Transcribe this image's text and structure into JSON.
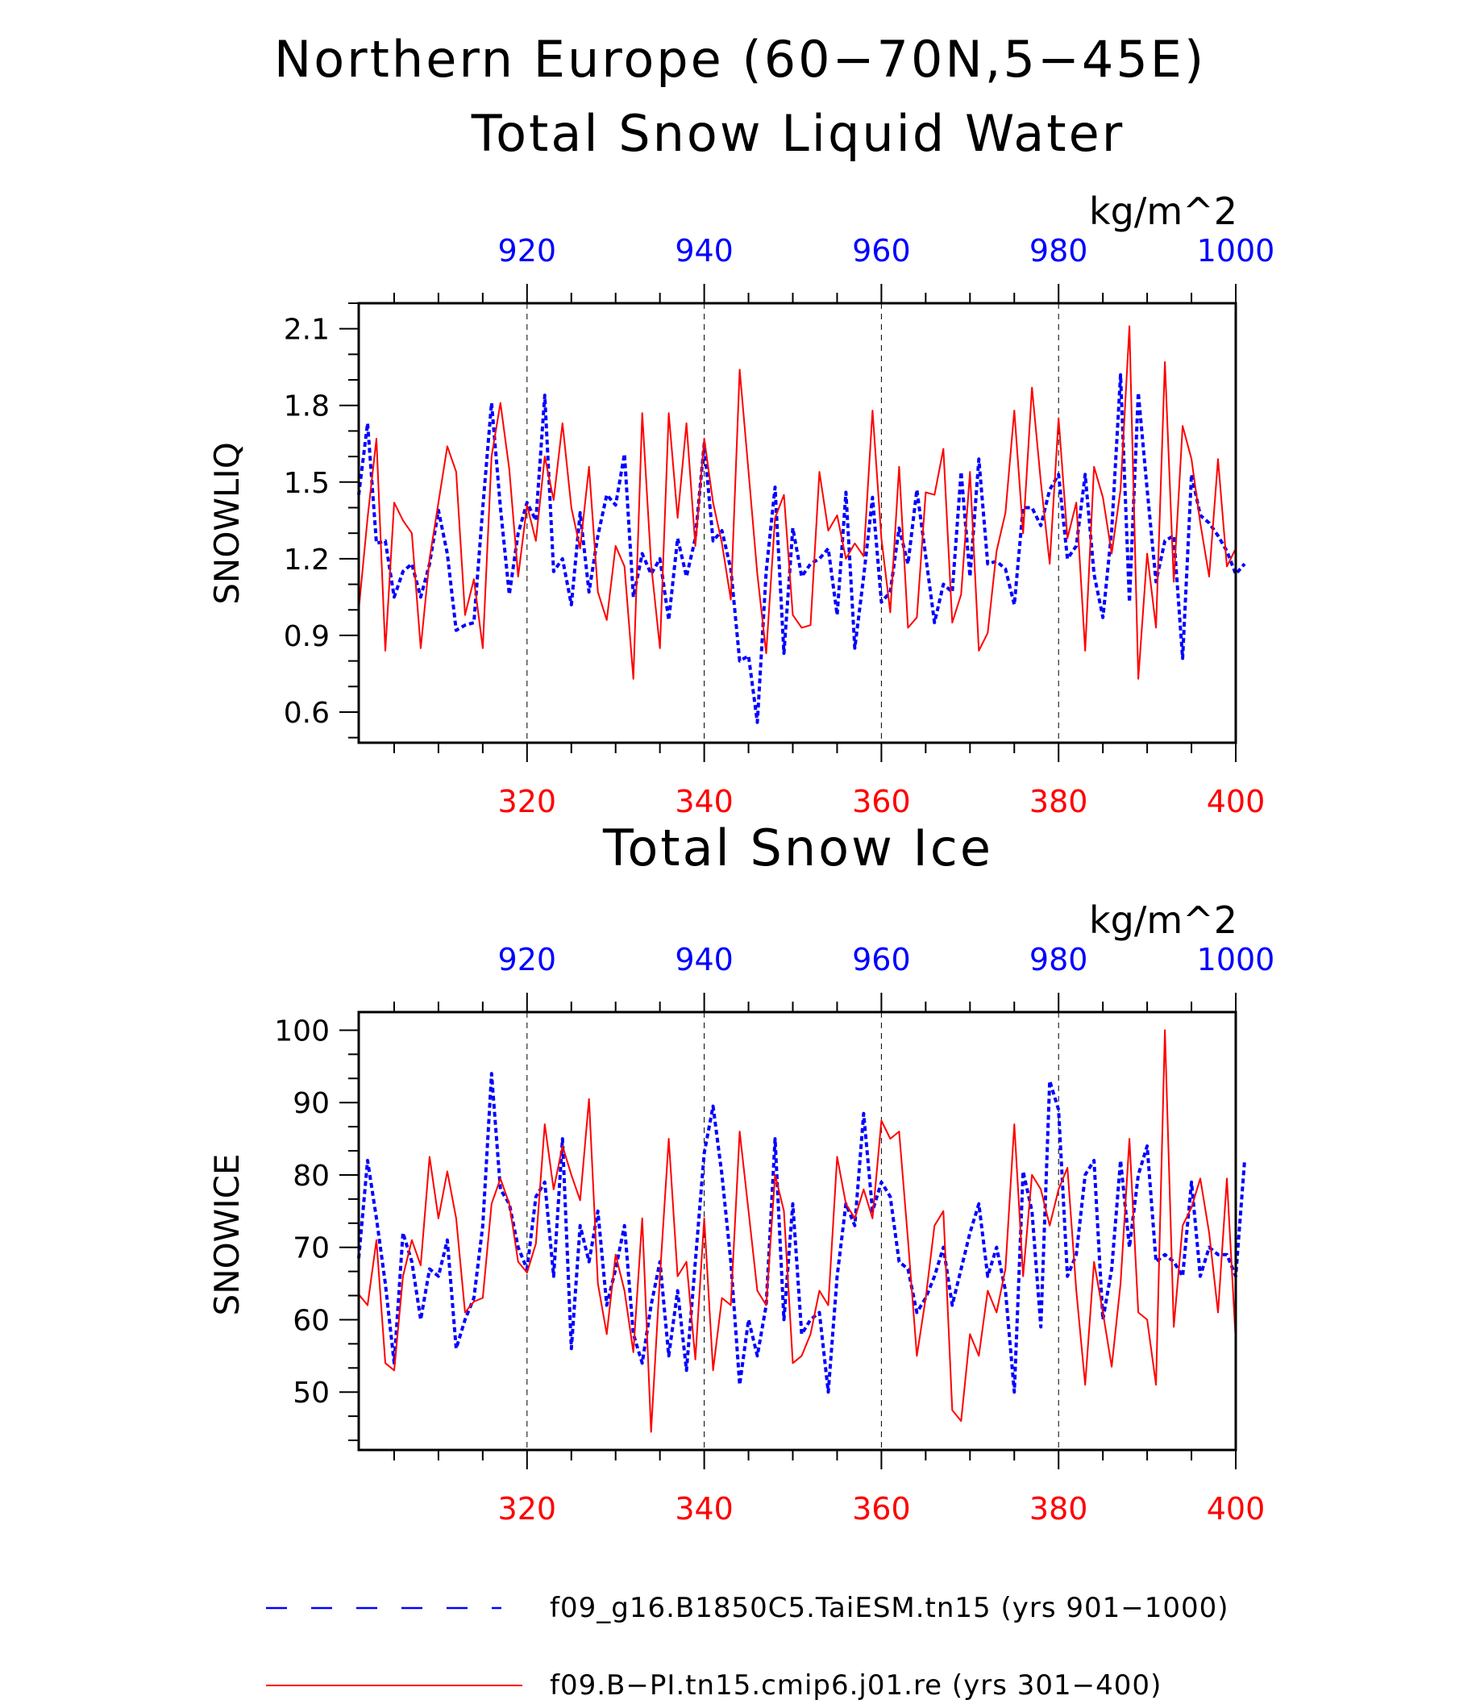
{
  "page": {
    "title_line1": "Northern Europe (60−70N,5−45E)",
    "legend": [
      {
        "label": "f09_g16.B1850C5.TaiESM.tn15 (yrs 901−1000)",
        "color": "#0000ff",
        "style": "dashed"
      },
      {
        "label": "f09.B−PI.tn15.cmip6.j01.re (yrs 301−400)",
        "color": "#ff0000",
        "style": "solid"
      }
    ]
  },
  "chart_data": [
    {
      "type": "line",
      "title": "Total Snow Liquid Water",
      "units": "kg/m^2",
      "ylabel": "SNOWLIQ",
      "ylim": [
        0.48,
        2.2
      ],
      "yticks": [
        0.6,
        0.9,
        1.2,
        1.5,
        1.8,
        2.1
      ],
      "ytick_labels": [
        "0.6",
        "0.9",
        "1.2",
        "1.5",
        "1.8",
        "2.1"
      ],
      "x_bottom": {
        "range": [
          301,
          400
        ],
        "ticks": [
          320,
          340,
          360,
          380,
          400
        ],
        "color": "#ff0000"
      },
      "x_top": {
        "range": [
          901,
          1000
        ],
        "ticks": [
          920,
          940,
          960,
          980,
          1000
        ],
        "color": "#0000ff"
      },
      "grid": "vertical dashed at major x ticks",
      "series": [
        {
          "axis": "top",
          "color": "#0000ff",
          "style": "dashed",
          "values": [
            1.45,
            1.73,
            1.26,
            1.27,
            1.05,
            1.15,
            1.18,
            1.05,
            1.18,
            1.39,
            1.22,
            0.92,
            0.94,
            0.95,
            1.4,
            1.81,
            1.4,
            1.06,
            1.3,
            1.42,
            1.35,
            1.84,
            1.15,
            1.2,
            1.02,
            1.38,
            1.07,
            1.29,
            1.45,
            1.41,
            1.61,
            1.05,
            1.22,
            1.14,
            1.2,
            0.96,
            1.28,
            1.13,
            1.28,
            1.65,
            1.27,
            1.31,
            1.16,
            0.8,
            0.82,
            0.56,
            1.15,
            1.48,
            0.83,
            1.32,
            1.13,
            1.18,
            1.2,
            1.24,
            0.98,
            1.46,
            0.85,
            1.13,
            1.44,
            1.03,
            1.07,
            1.32,
            1.18,
            1.47,
            1.21,
            0.95,
            1.1,
            1.07,
            1.54,
            1.13,
            1.59,
            1.18,
            1.19,
            1.16,
            1.02,
            1.4,
            1.4,
            1.33,
            1.47,
            1.53,
            1.2,
            1.25,
            1.53,
            1.14,
            0.97,
            1.31,
            1.92,
            1.03,
            1.85,
            1.47,
            1.11,
            1.27,
            1.29,
            0.81,
            1.53,
            1.37,
            1.34,
            1.29,
            1.23,
            1.14,
            1.18
          ]
        },
        {
          "axis": "bottom",
          "color": "#ff0000",
          "style": "solid",
          "values": [
            1.0,
            1.36,
            1.67,
            0.84,
            1.42,
            1.35,
            1.3,
            0.85,
            1.2,
            1.42,
            1.64,
            1.54,
            0.98,
            1.12,
            0.85,
            1.6,
            1.81,
            1.55,
            1.13,
            1.41,
            1.27,
            1.6,
            1.43,
            1.73,
            1.4,
            1.24,
            1.56,
            1.07,
            0.96,
            1.25,
            1.17,
            0.73,
            1.77,
            1.18,
            0.85,
            1.77,
            1.36,
            1.73,
            1.25,
            1.67,
            1.42,
            1.26,
            1.04,
            1.94,
            1.54,
            1.14,
            0.83,
            1.36,
            1.45,
            0.98,
            0.93,
            0.94,
            1.54,
            1.31,
            1.37,
            1.2,
            1.26,
            1.21,
            1.78,
            1.28,
            0.99,
            1.56,
            0.93,
            0.97,
            1.46,
            1.45,
            1.63,
            0.95,
            1.06,
            1.54,
            0.84,
            0.91,
            1.23,
            1.38,
            1.78,
            1.3,
            1.87,
            1.5,
            1.18,
            1.75,
            1.28,
            1.42,
            0.84,
            1.56,
            1.44,
            1.22,
            1.47,
            2.11,
            0.73,
            1.22,
            0.93,
            1.97,
            1.11,
            1.72,
            1.59,
            1.34,
            1.13,
            1.59,
            1.17,
            1.24
          ]
        }
      ]
    },
    {
      "type": "line",
      "title": "Total Snow Ice",
      "units": "kg/m^2",
      "ylabel": "SNOWICE",
      "ylim": [
        42,
        102.5
      ],
      "yticks": [
        50,
        60,
        70,
        80,
        90,
        100
      ],
      "ytick_labels": [
        "50",
        "60",
        "70",
        "80",
        "90",
        "100"
      ],
      "x_bottom": {
        "range": [
          301,
          400
        ],
        "ticks": [
          320,
          340,
          360,
          380,
          400
        ],
        "color": "#ff0000"
      },
      "x_top": {
        "range": [
          901,
          1000
        ],
        "ticks": [
          920,
          940,
          960,
          980,
          1000
        ],
        "color": "#0000ff"
      },
      "grid": "vertical dashed at major x ticks",
      "series": [
        {
          "axis": "top",
          "color": "#0000ff",
          "style": "dashed",
          "values": [
            68.5,
            82.0,
            74.0,
            65.0,
            54.0,
            72.0,
            68.0,
            60.0,
            67.0,
            66.0,
            71.0,
            56.0,
            60.0,
            63.0,
            73.0,
            94.0,
            78.0,
            76.0,
            70.0,
            67.0,
            77.0,
            79.0,
            66.0,
            85.0,
            56.0,
            73.0,
            68.0,
            75.0,
            62.0,
            67.0,
            73.0,
            58.0,
            54.0,
            62.0,
            68.0,
            55.0,
            64.0,
            53.0,
            68.0,
            83.0,
            89.5,
            80.0,
            68.0,
            51.0,
            60.0,
            55.0,
            62.0,
            85.0,
            60.0,
            76.0,
            58.0,
            60.0,
            61.0,
            50.0,
            66.0,
            76.0,
            73.0,
            88.5,
            75.0,
            79.0,
            77.0,
            68.0,
            67.0,
            61.0,
            63.0,
            66.0,
            70.0,
            62.0,
            67.0,
            72.0,
            76.0,
            66.0,
            70.0,
            64.0,
            50.0,
            80.5,
            75.0,
            59.0,
            93.0,
            89.0,
            66.0,
            69.0,
            80.0,
            82.0,
            60.0,
            67.0,
            82.0,
            70.0,
            80.0,
            84.0,
            68.0,
            69.0,
            68.0,
            66.0,
            79.0,
            66.0,
            70.0,
            69.0,
            69.0,
            66.0,
            82.0
          ]
        },
        {
          "axis": "bottom",
          "color": "#ff0000",
          "style": "solid",
          "values": [
            63.5,
            62.0,
            71.0,
            54.0,
            53.0,
            66.0,
            71.0,
            67.5,
            82.5,
            74.0,
            80.5,
            74.0,
            61.0,
            62.5,
            63.0,
            76.0,
            79.5,
            76.0,
            68.0,
            66.5,
            70.5,
            87.0,
            78.0,
            84.0,
            80.0,
            76.5,
            90.5,
            65.0,
            58.0,
            69.0,
            64.0,
            55.5,
            74.0,
            44.5,
            66.0,
            85.0,
            66.0,
            68.0,
            54.5,
            74.0,
            53.0,
            63.0,
            62.0,
            86.0,
            75.0,
            64.0,
            62.0,
            80.0,
            75.0,
            54.0,
            55.0,
            58.0,
            64.0,
            62.0,
            82.5,
            76.0,
            74.0,
            78.0,
            74.0,
            87.5,
            85.0,
            86.0,
            71.0,
            55.0,
            63.0,
            73.0,
            75.0,
            47.5,
            46.0,
            58.0,
            55.0,
            64.0,
            61.0,
            67.0,
            87.0,
            66.0,
            80.0,
            78.0,
            73.0,
            78.0,
            81.0,
            64.0,
            51.0,
            68.0,
            61.0,
            53.5,
            65.0,
            85.0,
            61.0,
            60.0,
            51.0,
            100.0,
            59.0,
            73.0,
            75.5,
            79.5,
            72.0,
            61.0,
            79.5,
            57.0
          ]
        }
      ]
    }
  ]
}
